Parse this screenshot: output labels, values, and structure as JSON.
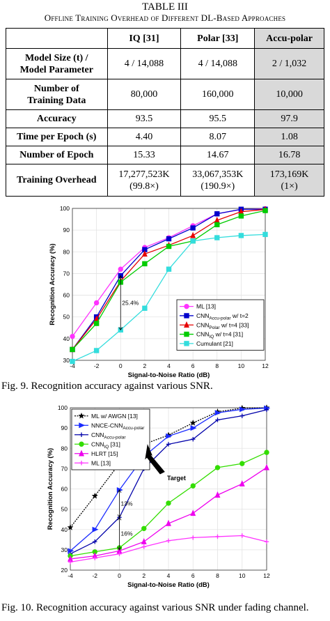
{
  "table": {
    "caption_line1": "TABLE III",
    "caption_line2": "Offline Training Overhead of Different DL-Based Approaches",
    "headers": [
      "",
      "IQ [31]",
      "Polar [33]",
      "Accu-polar"
    ],
    "rows": [
      {
        "label_lines": [
          "Model Size (t) /",
          "Model Parameter"
        ],
        "cells": [
          [
            "4 / 14,088"
          ],
          [
            "4 / 14,088"
          ],
          [
            "2 / 1,032"
          ]
        ]
      },
      {
        "label_lines": [
          "Number of",
          "Training Data"
        ],
        "cells": [
          [
            "80,000"
          ],
          [
            "160,000"
          ],
          [
            "10,000"
          ]
        ]
      },
      {
        "label_lines": [
          "Accuracy"
        ],
        "cells": [
          [
            "93.5"
          ],
          [
            "95.5"
          ],
          [
            "97.9"
          ]
        ]
      },
      {
        "label_lines": [
          "Time per Epoch (s)"
        ],
        "cells": [
          [
            "4.40"
          ],
          [
            "8.07"
          ],
          [
            "1.08"
          ]
        ]
      },
      {
        "label_lines": [
          "Number of Epoch"
        ],
        "cells": [
          [
            "15.33"
          ],
          [
            "14.67"
          ],
          [
            "16.78"
          ]
        ]
      },
      {
        "label_lines": [
          "Training Overhead"
        ],
        "cells": [
          [
            "17,277,523K",
            "(99.8×)"
          ],
          [
            "33,067,353K",
            "(190.9×)"
          ],
          [
            "173,169K",
            "(1×)"
          ]
        ]
      }
    ]
  },
  "fig9_caption": "Fig. 9. Recognition accuracy against various SNR.",
  "fig10_caption": "Fig. 10. Recognition accuracy against various SNR under fading channel.",
  "chart_data": [
    {
      "type": "line",
      "xlabel": "Signal-to-Noise Ratio (dB)",
      "ylabel": "Recognition Accuracy (%)",
      "xlim": [
        -4,
        12
      ],
      "ylim": [
        30,
        100
      ],
      "xticks": [
        -4,
        -2,
        0,
        2,
        4,
        6,
        8,
        10,
        12
      ],
      "yticks": [
        30,
        40,
        50,
        60,
        70,
        80,
        90,
        100
      ],
      "grid": true,
      "legend_position": "bottom-right",
      "x": [
        -4,
        -2,
        0,
        2,
        4,
        6,
        8,
        10,
        12
      ],
      "series": [
        {
          "name": "ML [13]",
          "color": "#ff33ff",
          "marker": "circle",
          "values": [
            41,
            56.5,
            72,
            82,
            86.5,
            92,
            97.5,
            99.5,
            99.8
          ]
        },
        {
          "name": "CNN_Accu-polar w/ t=2",
          "color": "#0000cc",
          "marker": "square",
          "values": [
            35,
            50,
            69,
            81,
            86,
            91,
            97.5,
            99.6,
            99.6
          ]
        },
        {
          "name": "CNN_Polar w/ t=4 [33]",
          "color": "#e60000",
          "marker": "triangle",
          "values": [
            35,
            49,
            66.5,
            79,
            83,
            87.5,
            94.5,
            98.5,
            99.5
          ]
        },
        {
          "name": "CNN_IQ w/ t=4 [31]",
          "color": "#00cc00",
          "marker": "square",
          "values": [
            35,
            47,
            66,
            74.5,
            82.5,
            85,
            92.5,
            96.5,
            99
          ]
        },
        {
          "name": "Cumulant [21]",
          "color": "#33dddd",
          "marker": "square",
          "values": [
            29.5,
            34.5,
            44,
            54,
            72,
            85,
            86.5,
            87.5,
            88
          ]
        }
      ],
      "legend": [
        {
          "main": "ML [13]",
          "sub": "",
          "tail": ""
        },
        {
          "main": "CNN",
          "sub": "Accu-polar",
          "tail": " w/ t=2"
        },
        {
          "main": "CNN",
          "sub": "Polar",
          "tail": " w/ t=4 [33]"
        },
        {
          "main": "CNN",
          "sub": "IQ",
          "tail": " w/ t=4 [31]"
        },
        {
          "main": "Cumulant [21]",
          "sub": "",
          "tail": ""
        }
      ],
      "annotation": {
        "text": "25.4%",
        "x": 0,
        "y_from": 44,
        "y_to": 69
      }
    },
    {
      "type": "line",
      "xlabel": "Signal-to-Noise Ratio (dB)",
      "ylabel": "Recognition Accuracy (%)",
      "xlim": [
        -4,
        12
      ],
      "ylim": [
        20,
        100
      ],
      "xticks": [
        -4,
        -2,
        0,
        2,
        4,
        6,
        8,
        10,
        12
      ],
      "yticks": [
        20,
        30,
        40,
        50,
        60,
        70,
        80,
        90,
        100
      ],
      "grid": true,
      "legend_position": "top-left",
      "x": [
        -4,
        -2,
        0,
        2,
        4,
        6,
        8,
        10,
        12
      ],
      "series": [
        {
          "name": "ML w/ AWGN [13]",
          "color": "#000000",
          "marker": "star",
          "dashed": true,
          "values": [
            41,
            56.5,
            72.5,
            82,
            86.5,
            92.5,
            98,
            99.8,
            100
          ]
        },
        {
          "name": "NNCE-CNN_Accu-polar",
          "color": "#1a2bff",
          "marker": "triangle-right",
          "values": [
            29.5,
            40,
            59.5,
            76,
            86,
            90,
            97.5,
            99.2,
            99.8
          ]
        },
        {
          "name": "CNN_Accu-polar",
          "color": "#0000aa",
          "marker": "plus",
          "values": [
            28,
            34,
            46,
            70,
            82,
            84.5,
            94,
            96,
            99
          ]
        },
        {
          "name": "CNN_IQ [31]",
          "color": "#33dd00",
          "marker": "circle",
          "values": [
            27,
            29,
            31,
            40.5,
            53,
            61.5,
            70.5,
            72.5,
            78
          ]
        },
        {
          "name": "HLRT [15]",
          "color": "#ee00ee",
          "marker": "triangle",
          "values": [
            25.5,
            27,
            29.5,
            34,
            43,
            48,
            57,
            62.5,
            70.5
          ]
        },
        {
          "name": "ML [13]",
          "color": "#ff33ff",
          "marker": "plus",
          "values": [
            24,
            26,
            28,
            31.5,
            34.5,
            36,
            36.5,
            37,
            34
          ]
        }
      ],
      "legend": [
        {
          "main": "ML w/ AWGN [13]",
          "sub": "",
          "tail": ""
        },
        {
          "main": "NNCE-CNN",
          "sub": "Accu-polar",
          "tail": ""
        },
        {
          "main": "CNN",
          "sub": "Accu-polar",
          "tail": ""
        },
        {
          "main": "CNN",
          "sub": "IQ",
          "tail": " [31]"
        },
        {
          "main": "HLRT [15]",
          "sub": "",
          "tail": ""
        },
        {
          "main": "ML [13]",
          "sub": "",
          "tail": ""
        }
      ],
      "annotations": [
        {
          "text": "13%",
          "x": 0,
          "y_from": 46,
          "y_to": 59.5
        },
        {
          "text": "16%",
          "x": 0,
          "y_from": 30,
          "y_to": 46
        }
      ],
      "target_label": "Target"
    }
  ]
}
